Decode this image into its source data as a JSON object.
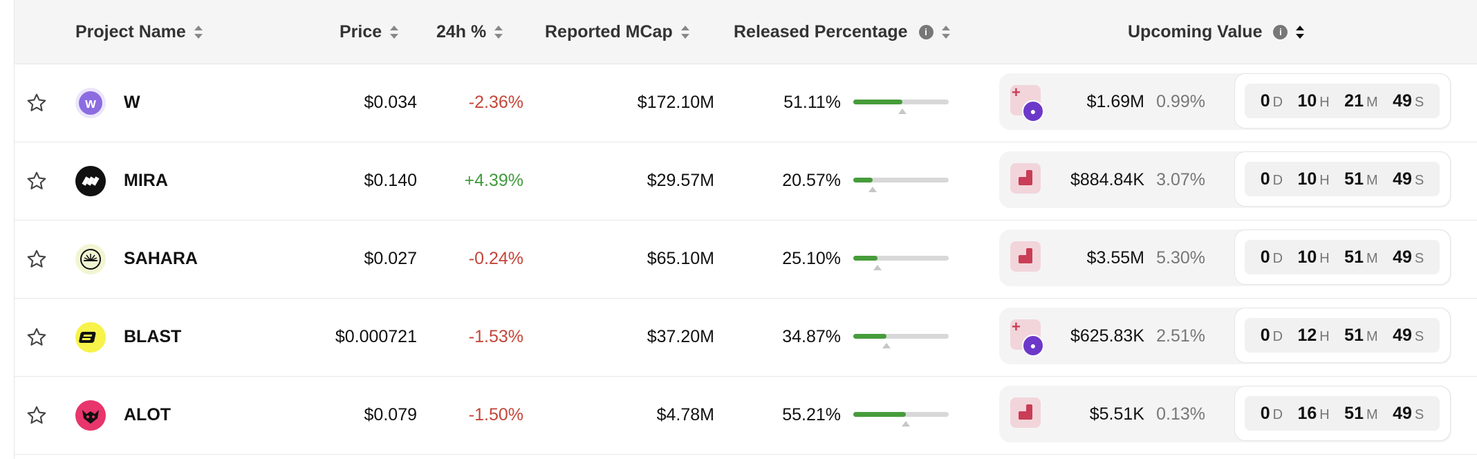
{
  "headers": {
    "project": "Project Name",
    "price": "Price",
    "change": "24h %",
    "mcap": "Reported MCap",
    "released": "Released Percentage",
    "upcoming": "Upcoming Value",
    "info_icon": "i"
  },
  "units": {
    "d": "D",
    "h": "H",
    "m": "M",
    "s": "S"
  },
  "rows": [
    {
      "name": "W",
      "price": "$0.034",
      "change": "-2.36%",
      "mcap": "$172.10M",
      "released": "51.11%",
      "released_value": 51.11,
      "upcoming_value": "$1.69M",
      "upcoming_pct": "0.99%",
      "badge": "mixed",
      "d": "0",
      "h": "10",
      "m": "21",
      "s": "49"
    },
    {
      "name": "MIRA",
      "price": "$0.140",
      "change": "+4.39%",
      "mcap": "$29.57M",
      "released": "20.57%",
      "released_value": 20.57,
      "upcoming_value": "$884.84K",
      "upcoming_pct": "3.07%",
      "badge": "chart",
      "d": "0",
      "h": "10",
      "m": "51",
      "s": "49"
    },
    {
      "name": "SAHARA",
      "price": "$0.027",
      "change": "-0.24%",
      "mcap": "$65.10M",
      "released": "25.10%",
      "released_value": 25.1,
      "upcoming_value": "$3.55M",
      "upcoming_pct": "5.30%",
      "badge": "chart",
      "d": "0",
      "h": "10",
      "m": "51",
      "s": "49"
    },
    {
      "name": "BLAST",
      "price": "$0.000721",
      "change": "-1.53%",
      "mcap": "$37.20M",
      "released": "34.87%",
      "released_value": 34.87,
      "upcoming_value": "$625.83K",
      "upcoming_pct": "2.51%",
      "badge": "mixed",
      "d": "0",
      "h": "12",
      "m": "51",
      "s": "49"
    },
    {
      "name": "ALOT",
      "price": "$0.079",
      "change": "-1.50%",
      "mcap": "$4.78M",
      "released": "55.21%",
      "released_value": 55.21,
      "upcoming_value": "$5.51K",
      "upcoming_pct": "0.13%",
      "badge": "chart",
      "d": "0",
      "h": "16",
      "m": "51",
      "s": "49"
    }
  ],
  "colors": {
    "negative": "#c4463a",
    "positive": "#3f9a3c",
    "progress": "#469c3a"
  }
}
